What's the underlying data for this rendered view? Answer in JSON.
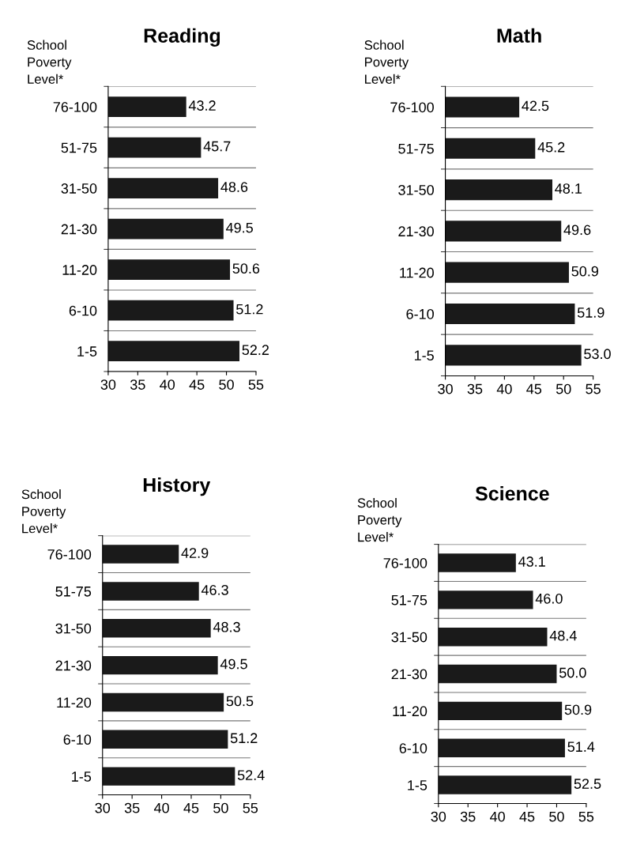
{
  "chart_data": [
    {
      "type": "bar",
      "orientation": "horizontal",
      "title": "Reading",
      "ylabel": "School\nPoverty\nLevel*",
      "categories": [
        "76-100",
        "51-75",
        "31-50",
        "21-30",
        "11-20",
        "6-10",
        "1-5"
      ],
      "values": [
        43.2,
        45.7,
        48.6,
        49.5,
        50.6,
        51.2,
        52.2
      ],
      "color": "#1a1a1a",
      "xlim": [
        30,
        55
      ],
      "xticks": [
        30,
        35,
        40,
        45,
        50,
        55
      ],
      "data_labels": true,
      "grid": "y"
    },
    {
      "type": "bar",
      "orientation": "horizontal",
      "title": "Math",
      "ylabel": "School\nPoverty\nLevel*",
      "categories": [
        "76-100",
        "51-75",
        "31-50",
        "21-30",
        "11-20",
        "6-10",
        "1-5"
      ],
      "values": [
        42.5,
        45.2,
        48.1,
        49.6,
        50.9,
        51.9,
        53.0
      ],
      "value_labels": [
        "42.5",
        "45.2",
        "48.1",
        "49.6",
        "50.9",
        "51.9",
        "53.0"
      ],
      "color": "#1a1a1a",
      "xlim": [
        30,
        55
      ],
      "xticks": [
        30,
        35,
        40,
        45,
        50,
        55
      ],
      "grid": "y"
    },
    {
      "type": "bar",
      "orientation": "horizontal",
      "title": "History",
      "ylabel": "School\nPoverty\nLevel*",
      "categories": [
        "76-100",
        "51-75",
        "31-50",
        "21-30",
        "11-20",
        "6-10",
        "1-5"
      ],
      "values": [
        42.9,
        46.3,
        48.3,
        49.5,
        50.5,
        51.2,
        52.4
      ],
      "color": "#1a1a1a",
      "xlim": [
        30,
        55
      ],
      "xticks": [
        30,
        35,
        40,
        45,
        50,
        55
      ],
      "data_labels": true,
      "grid": "y"
    },
    {
      "type": "bar",
      "orientation": "horizontal",
      "title": "Science",
      "ylabel": "School\nPoverty\nLevel*",
      "categories": [
        "76-100",
        "51-75",
        "31-50",
        "21-30",
        "11-20",
        "6-10",
        "1-5"
      ],
      "values": [
        43.1,
        46.0,
        48.4,
        50.0,
        50.9,
        51.4,
        52.5
      ],
      "value_labels": [
        "43.1",
        "46.0",
        "48.4",
        "50.0",
        "50.9",
        "51.4",
        "52.5"
      ],
      "color": "#1a1a1a",
      "xlim": [
        30,
        55
      ],
      "xticks": [
        30,
        35,
        40,
        45,
        50,
        55
      ],
      "grid": "y"
    }
  ]
}
